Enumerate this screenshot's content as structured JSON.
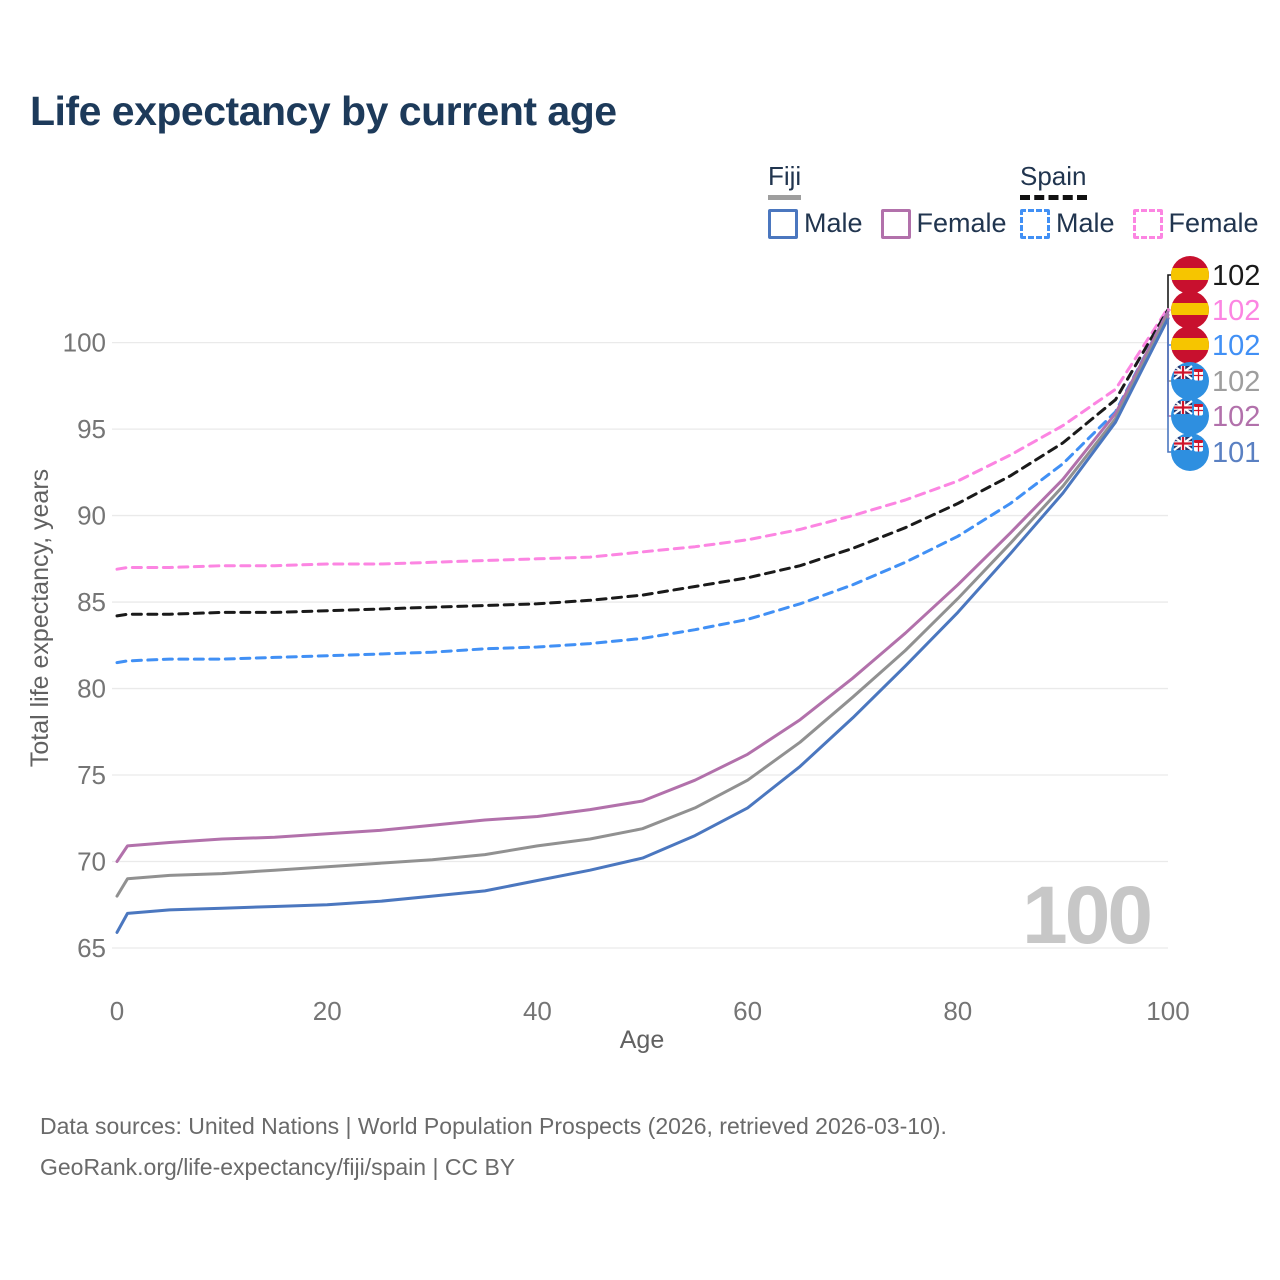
{
  "title": "Life expectancy by current age",
  "legend": {
    "groups": [
      {
        "label": "Fiji",
        "line_style": "solid",
        "underline_color": "#9e9e9e",
        "items": [
          {
            "label": "Male",
            "color": "#4b77bf"
          },
          {
            "label": "Female",
            "color": "#b271ab"
          }
        ]
      },
      {
        "label": "Spain",
        "line_style": "dashed",
        "underline_color": "#111111",
        "items": [
          {
            "label": "Male",
            "color": "#4190f5"
          },
          {
            "label": "Female",
            "color": "#fc85e2"
          }
        ]
      }
    ]
  },
  "watermark": "100",
  "axes": {
    "x": {
      "label": "Age",
      "min": 0,
      "max": 100,
      "ticks": [
        0,
        20,
        40,
        60,
        80,
        100
      ]
    },
    "y": {
      "label": "Total life expectancy, years",
      "min": 65,
      "max": 102.3,
      "ticks": [
        65,
        70,
        75,
        80,
        85,
        90,
        95,
        100
      ]
    }
  },
  "colors": {
    "grid": "#eaeaea",
    "tick_text": "#757575",
    "axis_title": "#616161",
    "watermark": "#c7c7c7",
    "flag_spain_red": "#c8102e",
    "flag_spain_yellow": "#f6c500",
    "flag_fiji_blue": "#2e8fe0",
    "flag_jack_navy": "#27376f",
    "flag_jack_red": "#cf142b"
  },
  "end_labels": [
    {
      "flag": "spain",
      "value": "102",
      "color": "#1a1a1a",
      "series": "spain-all"
    },
    {
      "flag": "spain",
      "value": "102",
      "color": "#fc85e2",
      "series": "spain-female"
    },
    {
      "flag": "spain",
      "value": "102",
      "color": "#4190f5",
      "series": "spain-male"
    },
    {
      "flag": "fiji",
      "value": "102",
      "color": "#9e9e9e",
      "series": "fiji-all"
    },
    {
      "flag": "fiji",
      "value": "102",
      "color": "#b271ab",
      "series": "fiji-female"
    },
    {
      "flag": "fiji",
      "value": "101",
      "color": "#5a80c2",
      "series": "fiji-male"
    }
  ],
  "footer": {
    "line1": "Data sources: United Nations | World Population Prospects (2026, retrieved 2026-03-10).",
    "line2": "GeoRank.org/life-expectancy/fiji/spain | CC BY"
  },
  "chart_data": {
    "type": "line",
    "title": "Life expectancy by current age",
    "xlabel": "Age",
    "ylabel": "Total life expectancy, years",
    "xlim": [
      0,
      100
    ],
    "ylim": [
      65,
      102.3
    ],
    "grid": true,
    "x": [
      0,
      1,
      5,
      10,
      15,
      20,
      25,
      30,
      35,
      40,
      45,
      50,
      55,
      60,
      65,
      70,
      75,
      80,
      85,
      90,
      95,
      100
    ],
    "series": [
      {
        "id": "spain-female",
        "name": "Spain Female",
        "color": "#fc85e2",
        "dash": "dashed",
        "values": [
          86.9,
          87.0,
          87.0,
          87.1,
          87.1,
          87.2,
          87.2,
          87.3,
          87.4,
          87.5,
          87.6,
          87.9,
          88.2,
          88.6,
          89.2,
          90.0,
          90.9,
          92.0,
          93.5,
          95.2,
          97.3,
          102.0
        ]
      },
      {
        "id": "spain-all",
        "name": "Spain Both sexes",
        "color": "#1a1a1a",
        "dash": "dashed",
        "values": [
          84.2,
          84.3,
          84.3,
          84.4,
          84.4,
          84.5,
          84.6,
          84.7,
          84.8,
          84.9,
          85.1,
          85.4,
          85.9,
          86.4,
          87.1,
          88.1,
          89.3,
          90.7,
          92.3,
          94.2,
          96.7,
          101.9
        ]
      },
      {
        "id": "spain-male",
        "name": "Spain Male",
        "color": "#4190f5",
        "dash": "dashed",
        "values": [
          81.5,
          81.6,
          81.7,
          81.7,
          81.8,
          81.9,
          82.0,
          82.1,
          82.3,
          82.4,
          82.6,
          82.9,
          83.4,
          84.0,
          84.9,
          86.0,
          87.3,
          88.8,
          90.7,
          93.0,
          96.0,
          101.8
        ]
      },
      {
        "id": "fiji-female",
        "name": "Fiji Female",
        "color": "#b271ab",
        "dash": "solid",
        "values": [
          70.0,
          70.9,
          71.1,
          71.3,
          71.4,
          71.6,
          71.8,
          72.1,
          72.4,
          72.6,
          73.0,
          73.5,
          74.7,
          76.2,
          78.2,
          80.6,
          83.2,
          86.0,
          89.0,
          92.1,
          95.9,
          101.8
        ]
      },
      {
        "id": "fiji-all",
        "name": "Fiji Both sexes",
        "color": "#919191",
        "dash": "solid",
        "values": [
          68.0,
          69.0,
          69.2,
          69.3,
          69.5,
          69.7,
          69.9,
          70.1,
          70.4,
          70.9,
          71.3,
          71.9,
          73.1,
          74.7,
          76.9,
          79.5,
          82.2,
          85.2,
          88.4,
          91.7,
          95.6,
          101.6
        ]
      },
      {
        "id": "fiji-male",
        "name": "Fiji Male",
        "color": "#4b77bf",
        "dash": "solid",
        "values": [
          65.9,
          67.0,
          67.2,
          67.3,
          67.4,
          67.5,
          67.7,
          68.0,
          68.3,
          68.9,
          69.5,
          70.2,
          71.5,
          73.1,
          75.5,
          78.3,
          81.3,
          84.4,
          87.8,
          91.3,
          95.4,
          101.4
        ]
      }
    ]
  }
}
